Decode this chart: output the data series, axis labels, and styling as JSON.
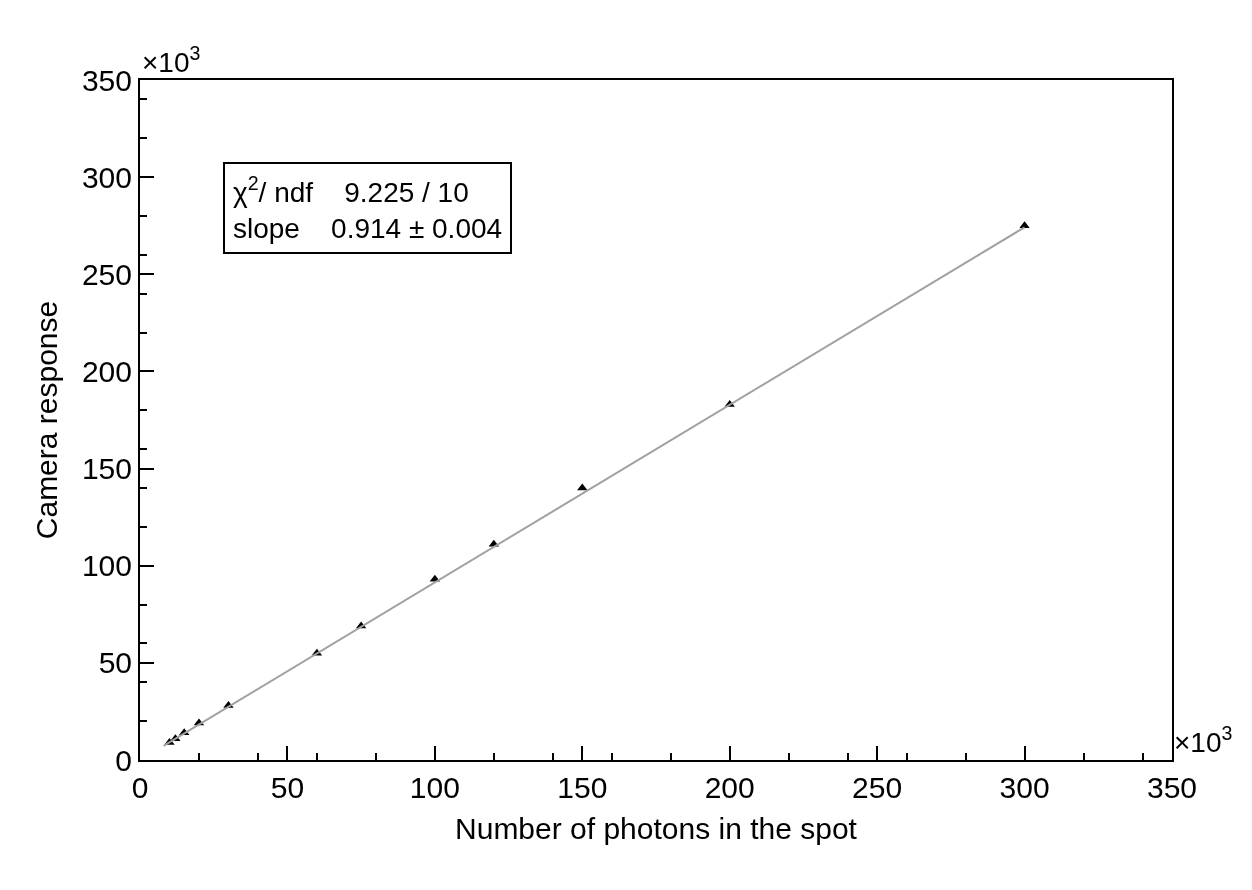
{
  "chart_data": {
    "type": "scatter",
    "xlabel": "Number of photons in the spot",
    "ylabel": "Camera response",
    "x": [
      10,
      12,
      15,
      20,
      30,
      60,
      75,
      100,
      120,
      150,
      200,
      300
    ],
    "series": [
      {
        "color": "#000000",
        "marker": "triangle",
        "values": [
          9,
          11,
          14,
          19,
          28,
          55,
          69,
          93,
          111,
          140,
          183,
          275
        ]
      },
      {
        "type": "line",
        "color": "#a0a0a0",
        "marker": "none",
        "x": [
          8,
          300
        ],
        "values": [
          7.3,
          274.2
        ]
      }
    ],
    "xlim": [
      0,
      350
    ],
    "ylim": [
      0,
      350
    ],
    "xticks": [
      0,
      50,
      100,
      150,
      200,
      250,
      300,
      350
    ],
    "yticks": [
      0,
      50,
      100,
      150,
      200,
      250,
      300,
      350
    ],
    "annotations": [
      "×10$^{3}$",
      "×10$^{3}$",
      "χ$^{2}$/ ndf    9.225 / 10",
      "slope    0.914 ± 0.004"
    ]
  }
}
